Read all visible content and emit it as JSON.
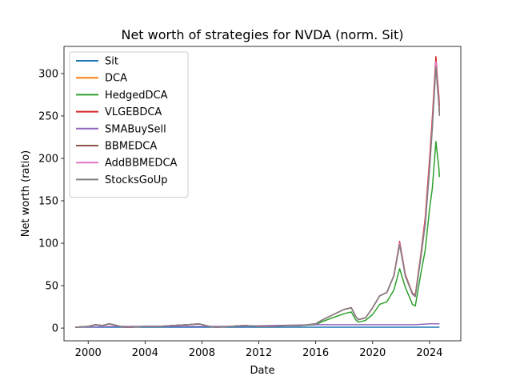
{
  "chart_data": {
    "type": "line",
    "title": "Net worth of strategies for NVDA (norm. Sit)",
    "xlabel": "Date",
    "ylabel": "Net worth (ratio)",
    "xlim": [
      1998.3,
      2026.2
    ],
    "ylim": [
      -15,
      332
    ],
    "x_ticks": [
      2000,
      2004,
      2008,
      2012,
      2016,
      2020,
      2024
    ],
    "y_ticks": [
      0,
      50,
      100,
      150,
      200,
      250,
      300
    ],
    "grid": false,
    "legend_position": "upper left",
    "colors": {
      "Sit": "#1f77b4",
      "DCA": "#ff7f0e",
      "HedgedDCA": "#2ca02c",
      "VLGEBDCA": "#d62728",
      "SMABuySell": "#9467bd",
      "BBMEDCA": "#8c564b",
      "AddBBMEDCA": "#e377c2",
      "StocksGoUp": "#7f7f7f"
    },
    "series": [
      {
        "name": "Sit",
        "x": [
          1999.1,
          2024.7
        ],
        "values": [
          1,
          1
        ]
      },
      {
        "name": "DCA",
        "x": [
          1999.1,
          2000.0,
          2000.5,
          2001.0,
          2001.5,
          2002.0,
          2002.5,
          2003.0,
          2004.0,
          2005.0,
          2006.0,
          2007.0,
          2007.8,
          2008.5,
          2009.0,
          2010.0,
          2011.0,
          2012.0,
          2013.0,
          2014.0,
          2015.0,
          2016.0,
          2016.5,
          2017.0,
          2017.5,
          2018.0,
          2018.5,
          2018.8,
          2019.0,
          2019.5,
          2020.0,
          2020.5,
          2021.0,
          2021.5,
          2021.9,
          2022.3,
          2022.8,
          2023.0,
          2023.4,
          2023.7,
          2024.0,
          2024.2,
          2024.45,
          2024.55,
          2024.65,
          2024.7
        ],
        "values": [
          1,
          2,
          4,
          3,
          5,
          3,
          1,
          1,
          2,
          2,
          3,
          4,
          5,
          2,
          1,
          2,
          3,
          2,
          2,
          3,
          3,
          5,
          10,
          14,
          18,
          22,
          24,
          14,
          10,
          12,
          24,
          38,
          42,
          62,
          100,
          62,
          40,
          38,
          85,
          125,
          190,
          240,
          315,
          290,
          270,
          255
        ]
      },
      {
        "name": "HedgedDCA",
        "x": [
          1999.1,
          2000.0,
          2000.5,
          2001.0,
          2001.5,
          2002.0,
          2002.5,
          2003.0,
          2004.0,
          2005.0,
          2006.0,
          2007.0,
          2007.8,
          2008.5,
          2009.0,
          2010.0,
          2011.0,
          2012.0,
          2013.0,
          2014.0,
          2015.0,
          2016.0,
          2016.5,
          2017.0,
          2017.5,
          2018.0,
          2018.5,
          2018.8,
          2019.0,
          2019.5,
          2020.0,
          2020.5,
          2021.0,
          2021.5,
          2021.9,
          2022.3,
          2022.8,
          2023.0,
          2023.4,
          2023.7,
          2024.0,
          2024.2,
          2024.45,
          2024.55,
          2024.65,
          2024.7
        ],
        "values": [
          1,
          2,
          4,
          3,
          5,
          3,
          1,
          1,
          2,
          2,
          3,
          4,
          5,
          2,
          1,
          2,
          3,
          2,
          2,
          3,
          3,
          4,
          8,
          11,
          14,
          17,
          19,
          10,
          7,
          9,
          16,
          28,
          31,
          45,
          70,
          48,
          28,
          26,
          65,
          92,
          140,
          165,
          220,
          205,
          190,
          178
        ]
      },
      {
        "name": "VLGEBDCA",
        "x": [
          1999.1,
          2000.0,
          2000.5,
          2001.0,
          2001.5,
          2002.0,
          2002.5,
          2003.0,
          2004.0,
          2005.0,
          2006.0,
          2007.0,
          2007.8,
          2008.5,
          2009.0,
          2010.0,
          2011.0,
          2012.0,
          2013.0,
          2014.0,
          2015.0,
          2016.0,
          2016.5,
          2017.0,
          2017.5,
          2018.0,
          2018.5,
          2018.8,
          2019.0,
          2019.5,
          2020.0,
          2020.5,
          2021.0,
          2021.5,
          2021.9,
          2022.3,
          2022.8,
          2023.0,
          2023.4,
          2023.7,
          2024.0,
          2024.2,
          2024.45,
          2024.55,
          2024.65,
          2024.7
        ],
        "values": [
          1,
          2,
          4,
          3,
          5,
          3,
          1,
          1,
          2,
          2,
          3,
          4,
          5,
          2,
          1,
          2,
          3,
          2,
          2,
          3,
          3,
          5,
          10,
          14,
          18,
          22,
          24,
          14,
          10,
          12,
          24,
          38,
          42,
          62,
          102,
          63,
          41,
          39,
          88,
          130,
          198,
          248,
          320,
          295,
          275,
          262
        ]
      },
      {
        "name": "SMABuySell",
        "x": [
          1999.1,
          2002.0,
          2006.0,
          2010.0,
          2013.0,
          2016.0,
          2018.0,
          2020.0,
          2022.0,
          2023.0,
          2024.0,
          2024.7
        ],
        "values": [
          1,
          2,
          2,
          2,
          3,
          4,
          4,
          4,
          4,
          4,
          5,
          5
        ]
      },
      {
        "name": "BBMEDCA",
        "x": [
          1999.1,
          2000.0,
          2000.5,
          2001.0,
          2001.5,
          2002.0,
          2002.5,
          2003.0,
          2004.0,
          2005.0,
          2006.0,
          2007.0,
          2007.8,
          2008.5,
          2009.0,
          2010.0,
          2011.0,
          2012.0,
          2013.0,
          2014.0,
          2015.0,
          2016.0,
          2016.5,
          2017.0,
          2017.5,
          2018.0,
          2018.5,
          2018.8,
          2019.0,
          2019.5,
          2020.0,
          2020.5,
          2021.0,
          2021.5,
          2021.9,
          2022.3,
          2022.8,
          2023.0,
          2023.4,
          2023.7,
          2024.0,
          2024.2,
          2024.45,
          2024.55,
          2024.65,
          2024.7
        ],
        "values": [
          1,
          2,
          4,
          3,
          5,
          3,
          1,
          1,
          2,
          2,
          3,
          4,
          5,
          2,
          1,
          2,
          3,
          2,
          2,
          3,
          3,
          5,
          10,
          14,
          18,
          22,
          24,
          14,
          10,
          12,
          24,
          38,
          42,
          62,
          100,
          62,
          40,
          38,
          85,
          125,
          190,
          240,
          312,
          288,
          268,
          252
        ]
      },
      {
        "name": "AddBBMEDCA",
        "x": [
          1999.1,
          2000.0,
          2000.5,
          2001.0,
          2001.5,
          2002.0,
          2002.5,
          2003.0,
          2004.0,
          2005.0,
          2006.0,
          2007.0,
          2007.8,
          2008.5,
          2009.0,
          2010.0,
          2011.0,
          2012.0,
          2013.0,
          2014.0,
          2015.0,
          2016.0,
          2016.5,
          2017.0,
          2017.5,
          2018.0,
          2018.5,
          2018.8,
          2019.0,
          2019.5,
          2020.0,
          2020.5,
          2021.0,
          2021.5,
          2021.9,
          2022.3,
          2022.8,
          2023.0,
          2023.4,
          2023.7,
          2024.0,
          2024.2,
          2024.45,
          2024.55,
          2024.65,
          2024.7
        ],
        "values": [
          1,
          2,
          4,
          3,
          5,
          3,
          1,
          1,
          2,
          2,
          3,
          4,
          5,
          2,
          1,
          2,
          3,
          2,
          2,
          3,
          3,
          5,
          10,
          14,
          18,
          22,
          24,
          14,
          10,
          12,
          24,
          38,
          42,
          62,
          100,
          62,
          40,
          38,
          85,
          125,
          190,
          240,
          314,
          289,
          269,
          254
        ]
      },
      {
        "name": "StocksGoUp",
        "x": [
          1999.1,
          2000.0,
          2000.5,
          2001.0,
          2001.5,
          2002.0,
          2002.5,
          2003.0,
          2004.0,
          2005.0,
          2006.0,
          2007.0,
          2007.8,
          2008.5,
          2009.0,
          2010.0,
          2011.0,
          2012.0,
          2013.0,
          2014.0,
          2015.0,
          2016.0,
          2016.5,
          2017.0,
          2017.5,
          2018.0,
          2018.5,
          2018.8,
          2019.0,
          2019.5,
          2020.0,
          2020.5,
          2021.0,
          2021.5,
          2021.9,
          2022.3,
          2022.8,
          2023.0,
          2023.4,
          2023.7,
          2024.0,
          2024.2,
          2024.45,
          2024.55,
          2024.65,
          2024.7
        ],
        "values": [
          1,
          2,
          4,
          3,
          5,
          3,
          1,
          1,
          2,
          2,
          3,
          4,
          5,
          2,
          1,
          2,
          3,
          2,
          2,
          3,
          3,
          5,
          10,
          14,
          18,
          22,
          24,
          14,
          10,
          12,
          24,
          38,
          42,
          62,
          98,
          61,
          40,
          37,
          84,
          122,
          186,
          235,
          308,
          285,
          265,
          250
        ]
      }
    ]
  }
}
